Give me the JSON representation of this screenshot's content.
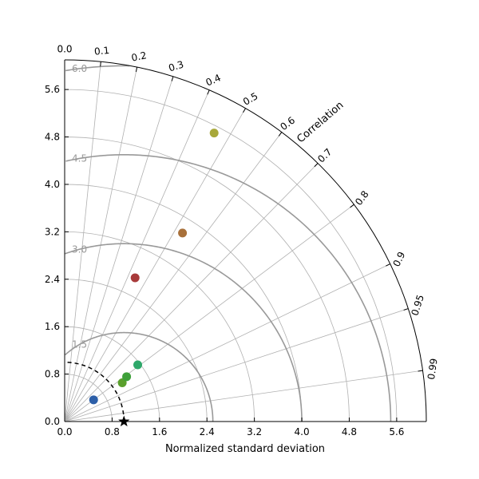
{
  "chart_data": {
    "type": "scatter",
    "subtype": "taylor-diagram",
    "xlabel": "Normalized standard deviation",
    "correlation_label": "Correlation",
    "std_range": [
      0,
      6.1
    ],
    "std_ticks": [
      0.0,
      0.8,
      1.6,
      2.4,
      3.2,
      4.0,
      4.8,
      5.6
    ],
    "std_tick_labels": [
      "0.0",
      "0.8",
      "1.6",
      "2.4",
      "3.2",
      "4.0",
      "4.8",
      "5.6"
    ],
    "std_grid_circles": [
      0.8,
      1.6,
      2.4,
      3.2,
      4.0,
      4.8,
      5.6
    ],
    "correlation_ticks": [
      0.0,
      0.1,
      0.2,
      0.3,
      0.4,
      0.5,
      0.6,
      0.7,
      0.8,
      0.9,
      0.95,
      0.99
    ],
    "correlation_tick_labels": [
      "0.0",
      "0.1",
      "0.2",
      "0.3",
      "0.4",
      "0.5",
      "0.6",
      "0.7",
      "0.8",
      "0.9",
      "0.95",
      "0.99"
    ],
    "rmsd_contours": [
      1.5,
      3.0,
      4.5,
      6.0
    ],
    "rmsd_contour_labels": [
      "1.5",
      "3.0",
      "4.5",
      "6.0"
    ],
    "reference": {
      "std": 1.0,
      "correlation": 1.0,
      "marker": "star",
      "color": "#000000"
    },
    "grid": true,
    "points": [
      {
        "std": 0.61,
        "correlation": 0.8,
        "color": "#2d5fa8"
      },
      {
        "std": 1.17,
        "correlation": 0.83,
        "color": "#5aa02c"
      },
      {
        "std": 1.29,
        "correlation": 0.81,
        "color": "#3ea03a"
      },
      {
        "std": 1.56,
        "correlation": 0.79,
        "color": "#2ea86a"
      },
      {
        "std": 2.7,
        "correlation": 0.44,
        "color": "#a83a3a"
      },
      {
        "std": 3.75,
        "correlation": 0.53,
        "color": "#a8703a"
      },
      {
        "std": 5.48,
        "correlation": 0.46,
        "color": "#a8a83a"
      }
    ]
  }
}
